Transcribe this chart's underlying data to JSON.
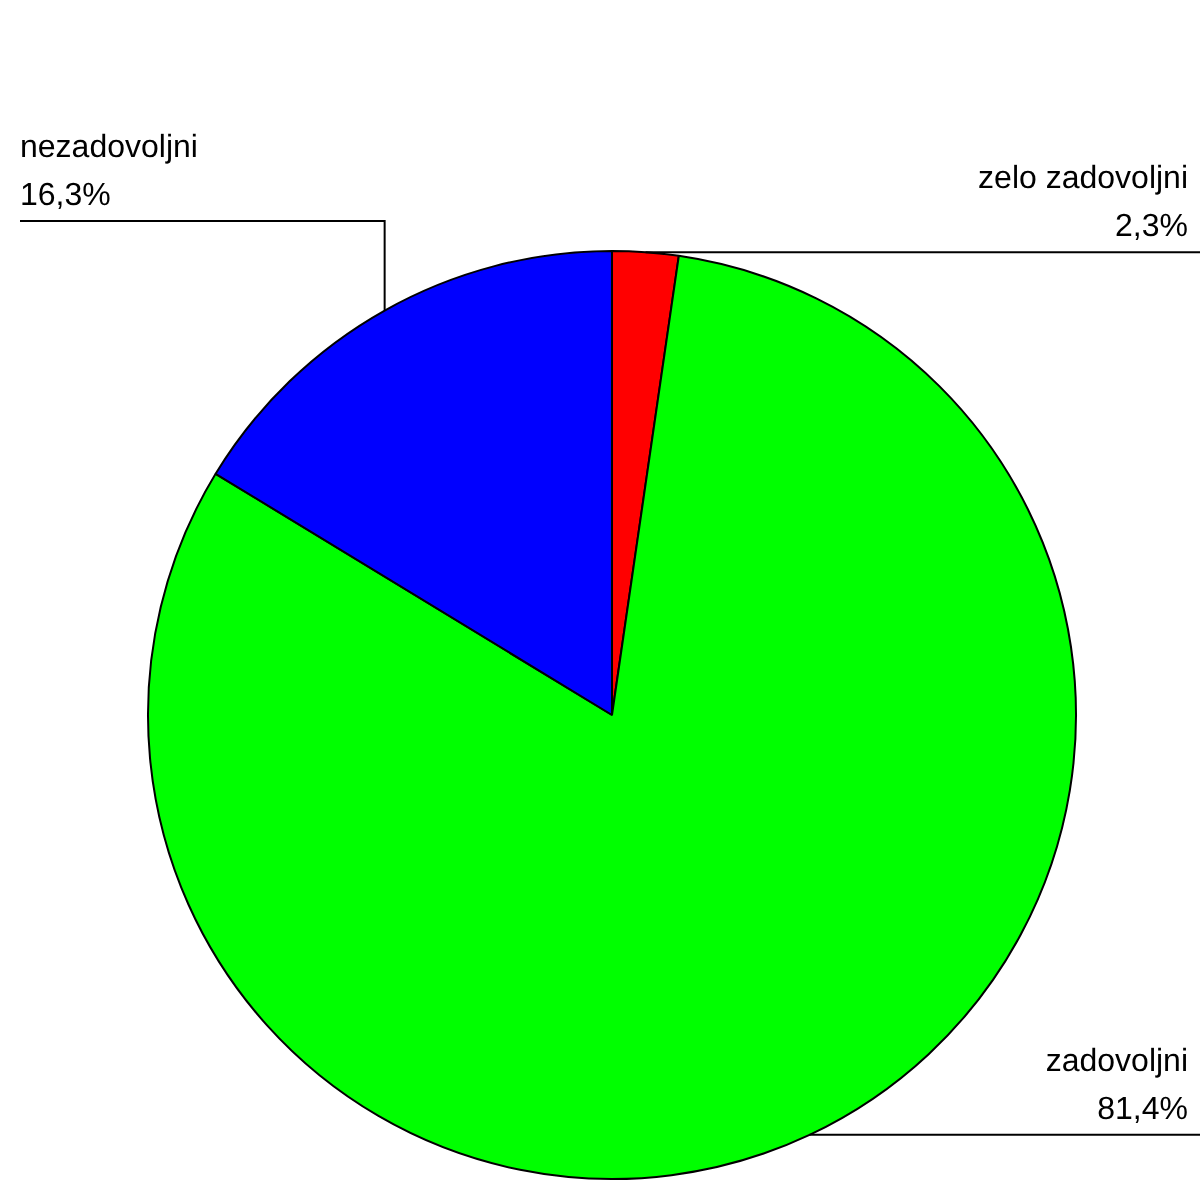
{
  "chart_data": {
    "type": "pie",
    "categories": [
      "zelo zadovoljni",
      "zadovoljni",
      "nezadovoljni"
    ],
    "values": [
      2.3,
      81.4,
      16.3
    ],
    "colors": [
      "#ff0000",
      "#00ff00",
      "#0000ff"
    ],
    "value_labels": [
      "2,3%",
      "81,4%",
      "16,3%"
    ],
    "legend": false
  }
}
